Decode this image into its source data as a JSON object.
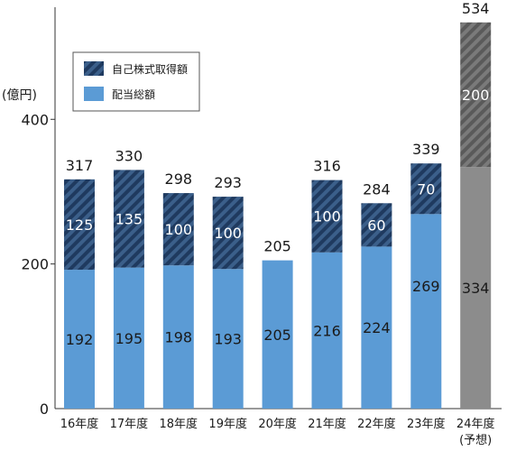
{
  "chart_data": {
    "type": "bar",
    "stacked": true,
    "ylabel": "(億円)",
    "ylim": [
      0,
      555
    ],
    "yticks": [
      0,
      200,
      400
    ],
    "categories": [
      "16年度",
      "17年度",
      "18年度",
      "19年度",
      "20年度",
      "21年度",
      "22年度",
      "23年度",
      "24年度"
    ],
    "category_notes": [
      "",
      "",
      "",
      "",
      "",
      "",
      "",
      "",
      "(予想)"
    ],
    "series": [
      {
        "name": "配当総額",
        "values": [
          192,
          195,
          198,
          193,
          205,
          216,
          224,
          269,
          334
        ]
      },
      {
        "name": "自己株式取得額",
        "values": [
          125,
          135,
          100,
          100,
          0,
          100,
          60,
          70,
          200
        ]
      }
    ],
    "totals": [
      317,
      330,
      298,
      293,
      205,
      316,
      284,
      339,
      534
    ],
    "forecast_index": 8,
    "legend": {
      "position": "top-left",
      "order": [
        "自己株式取得額",
        "配当総額"
      ]
    },
    "grid": false,
    "colors": {
      "dividend": "#5b9bd5",
      "buyback_base": "#3b5f8a",
      "buyback_stripe": "#1f3a5f",
      "forecast_dividend": "#8c8c8c",
      "forecast_buyback_base": "#777777",
      "forecast_buyback_stripe": "#5a5a5a",
      "axis": "#333333"
    }
  }
}
